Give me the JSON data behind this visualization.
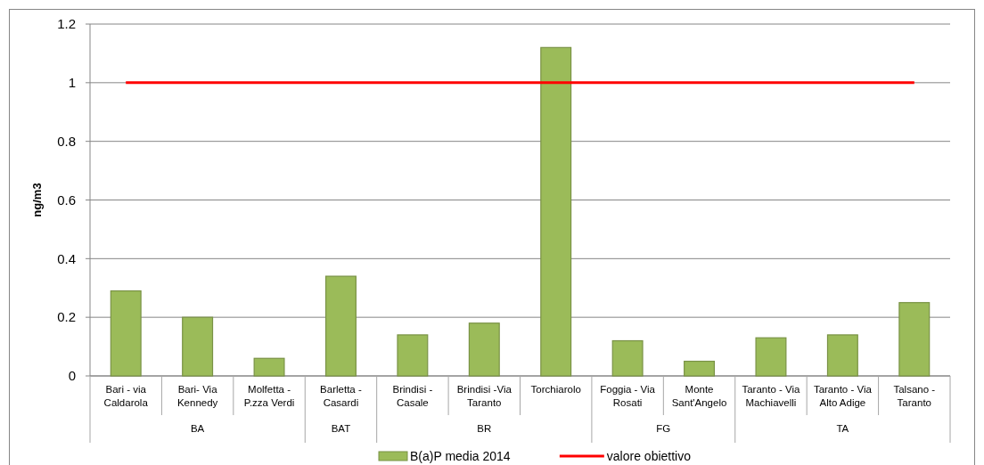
{
  "chart_data": {
    "type": "bar",
    "ylabel": "ng/m3",
    "categories": [
      "Bari - via Caldarola",
      "Bari- Via Kennedy",
      "Molfetta - P.zza Verdi",
      "Barletta - Casardi",
      "Brindisi - Casale",
      "Brindisi -Via Taranto",
      "Torchiarolo",
      "Foggia - Via Rosati",
      "Monte Sant'Angelo",
      "Taranto - Via Machiavelli",
      "Taranto - Via Alto Adige",
      "Talsano - Taranto"
    ],
    "series": [
      {
        "name": "B(a)P media 2014",
        "color": "#9bbb59",
        "values": [
          0.29,
          0.2,
          0.06,
          0.34,
          0.14,
          0.18,
          1.12,
          0.12,
          0.05,
          0.13,
          0.14,
          0.25
        ]
      },
      {
        "name": "valore obiettivo",
        "type": "line",
        "color": "#ff0000",
        "values": [
          1,
          1,
          1,
          1,
          1,
          1,
          1,
          1,
          1,
          1,
          1,
          1
        ]
      }
    ],
    "ylim": [
      0,
      1.2
    ],
    "yticks": [
      0,
      0.2,
      0.4,
      0.6,
      0.8,
      1,
      1.2
    ],
    "grid": "y",
    "legend": "bottom",
    "annotations": [
      "BA",
      "BAT",
      "BR",
      "FG",
      "TA"
    ]
  }
}
